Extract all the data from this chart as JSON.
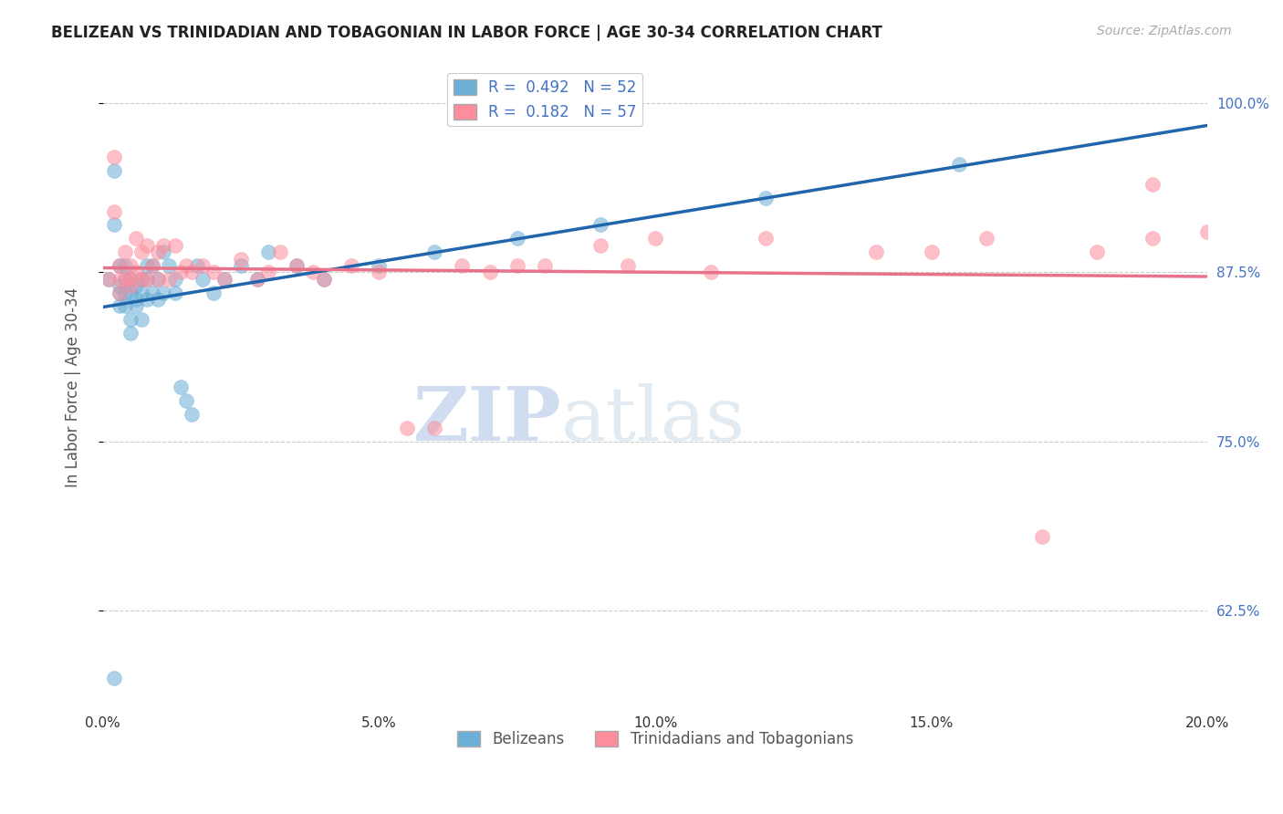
{
  "title": "BELIZEAN VS TRINIDADIAN AND TOBAGONIAN IN LABOR FORCE | AGE 30-34 CORRELATION CHART",
  "source": "Source: ZipAtlas.com",
  "xlabel_ticks": [
    "0.0%",
    "5.0%",
    "10.0%",
    "15.0%",
    "20.0%"
  ],
  "xlabel_vals": [
    0.0,
    0.05,
    0.1,
    0.15,
    0.2
  ],
  "ylabel_ticks": [
    "62.5%",
    "75.0%",
    "87.5%",
    "100.0%"
  ],
  "ylabel_vals": [
    0.625,
    0.75,
    0.875,
    1.0
  ],
  "ylabel_label": "In Labor Force | Age 30-34",
  "xlim": [
    0.0,
    0.2
  ],
  "ylim": [
    0.55,
    1.03
  ],
  "blue_R": 0.492,
  "blue_N": 52,
  "pink_R": 0.182,
  "pink_N": 57,
  "blue_color": "#6baed6",
  "pink_color": "#fd8d9d",
  "line_blue": "#2166ac",
  "line_pink": "#e8728a",
  "legend_blue_label": "Belizeans",
  "legend_pink_label": "Trinidadians and Tobagonians",
  "blue_scatter_x": [
    0.001,
    0.002,
    0.002,
    0.003,
    0.003,
    0.003,
    0.003,
    0.004,
    0.004,
    0.004,
    0.004,
    0.005,
    0.005,
    0.005,
    0.005,
    0.006,
    0.006,
    0.006,
    0.007,
    0.007,
    0.007,
    0.008,
    0.008,
    0.008,
    0.009,
    0.009,
    0.01,
    0.01,
    0.011,
    0.011,
    0.012,
    0.013,
    0.013,
    0.014,
    0.015,
    0.016,
    0.017,
    0.018,
    0.02,
    0.022,
    0.025,
    0.028,
    0.03,
    0.035,
    0.04,
    0.05,
    0.06,
    0.075,
    0.09,
    0.12,
    0.155,
    0.002
  ],
  "blue_scatter_y": [
    0.87,
    0.95,
    0.91,
    0.88,
    0.865,
    0.86,
    0.85,
    0.87,
    0.88,
    0.86,
    0.85,
    0.83,
    0.87,
    0.86,
    0.84,
    0.865,
    0.855,
    0.85,
    0.87,
    0.86,
    0.84,
    0.88,
    0.87,
    0.855,
    0.88,
    0.86,
    0.87,
    0.855,
    0.89,
    0.86,
    0.88,
    0.87,
    0.86,
    0.79,
    0.78,
    0.77,
    0.88,
    0.87,
    0.86,
    0.87,
    0.88,
    0.87,
    0.89,
    0.88,
    0.87,
    0.88,
    0.89,
    0.9,
    0.91,
    0.93,
    0.955,
    0.575
  ],
  "pink_scatter_x": [
    0.001,
    0.002,
    0.002,
    0.003,
    0.003,
    0.003,
    0.004,
    0.004,
    0.005,
    0.005,
    0.005,
    0.006,
    0.006,
    0.007,
    0.007,
    0.008,
    0.008,
    0.009,
    0.01,
    0.01,
    0.011,
    0.012,
    0.013,
    0.014,
    0.015,
    0.016,
    0.018,
    0.02,
    0.022,
    0.025,
    0.028,
    0.03,
    0.032,
    0.035,
    0.038,
    0.04,
    0.045,
    0.05,
    0.055,
    0.06,
    0.065,
    0.07,
    0.075,
    0.08,
    0.09,
    0.095,
    0.1,
    0.11,
    0.12,
    0.14,
    0.15,
    0.16,
    0.17,
    0.18,
    0.19,
    0.2,
    0.19
  ],
  "pink_scatter_y": [
    0.87,
    0.96,
    0.92,
    0.88,
    0.87,
    0.86,
    0.89,
    0.87,
    0.88,
    0.87,
    0.865,
    0.9,
    0.875,
    0.89,
    0.87,
    0.895,
    0.87,
    0.88,
    0.89,
    0.87,
    0.895,
    0.87,
    0.895,
    0.875,
    0.88,
    0.875,
    0.88,
    0.875,
    0.87,
    0.885,
    0.87,
    0.875,
    0.89,
    0.88,
    0.875,
    0.87,
    0.88,
    0.875,
    0.76,
    0.76,
    0.88,
    0.875,
    0.88,
    0.88,
    0.895,
    0.88,
    0.9,
    0.875,
    0.9,
    0.89,
    0.89,
    0.9,
    0.68,
    0.89,
    0.9,
    0.905,
    0.94
  ]
}
